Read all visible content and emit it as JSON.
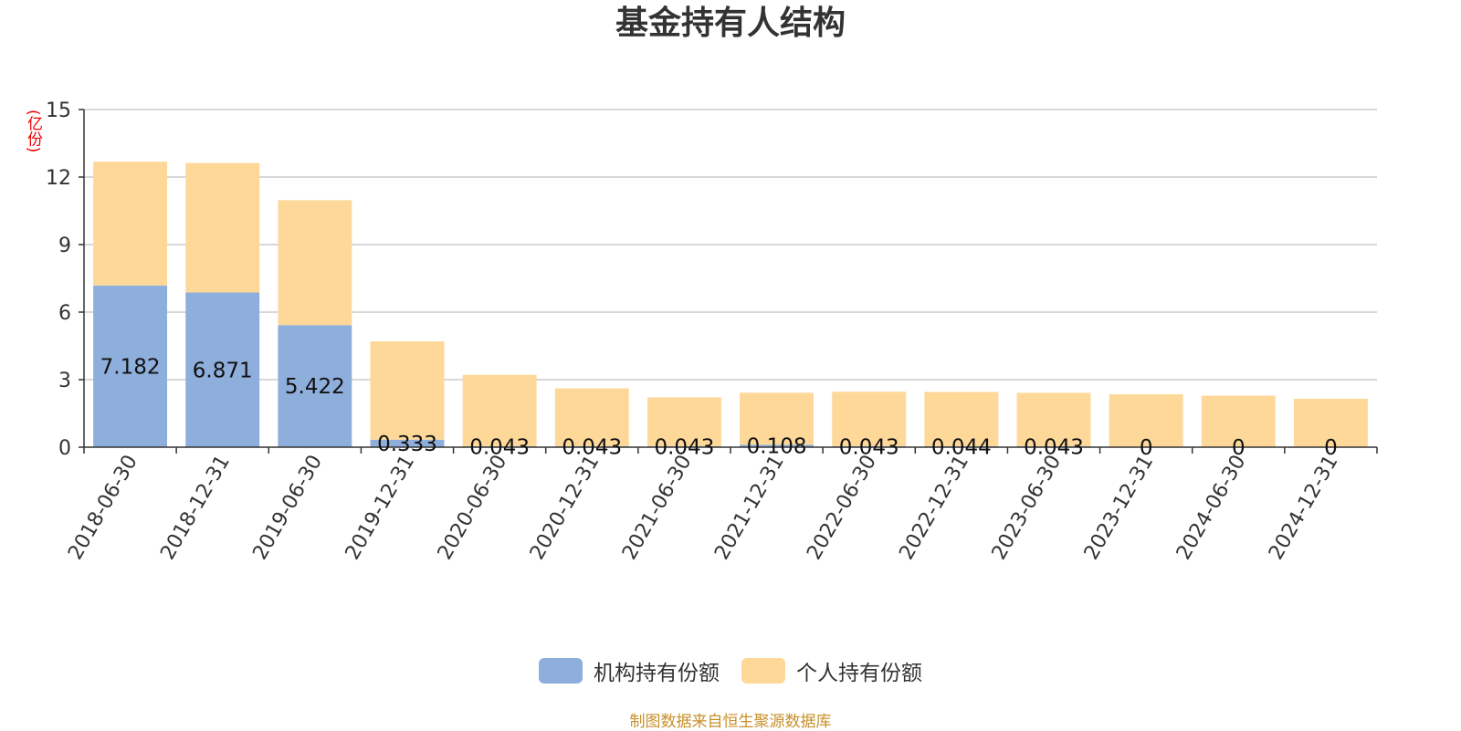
{
  "colors": {
    "institutional": "#8eaedb",
    "individual": "#fed899",
    "unit_text": "#ee0000",
    "source_text": "#c8902a"
  },
  "chart_data": {
    "type": "bar",
    "stacked": true,
    "title": "基金持有人结构",
    "ylabel": "(亿份)",
    "ylim": [
      0,
      15
    ],
    "yticks": [
      0,
      3,
      6,
      9,
      12,
      15
    ],
    "grid": true,
    "legend_position": "bottom",
    "categories": [
      "2018-06-30",
      "2018-12-31",
      "2019-06-30",
      "2019-12-31",
      "2020-06-30",
      "2020-12-31",
      "2021-06-30",
      "2021-12-31",
      "2022-06-30",
      "2022-12-31",
      "2023-06-30",
      "2023-12-31",
      "2024-06-30",
      "2024-12-31"
    ],
    "series": [
      {
        "name": "机构持有份额",
        "values": [
          7.182,
          6.871,
          5.422,
          0.333,
          0.043,
          0.043,
          0.043,
          0.108,
          0.043,
          0.044,
          0.043,
          0,
          0,
          0
        ],
        "labels": [
          "7.182",
          "6.871",
          "5.422",
          "0.333",
          "0.043",
          "0.043",
          "0.043",
          "0.108",
          "0.043",
          "0.044",
          "0.043",
          "0",
          "0",
          "0"
        ]
      },
      {
        "name": "个人持有份额",
        "values": [
          5.5,
          5.75,
          5.55,
          4.37,
          3.17,
          2.57,
          2.17,
          2.31,
          2.42,
          2.41,
          2.37,
          2.35,
          2.29,
          2.15
        ]
      }
    ],
    "source": "制图数据来自恒生聚源数据库"
  }
}
